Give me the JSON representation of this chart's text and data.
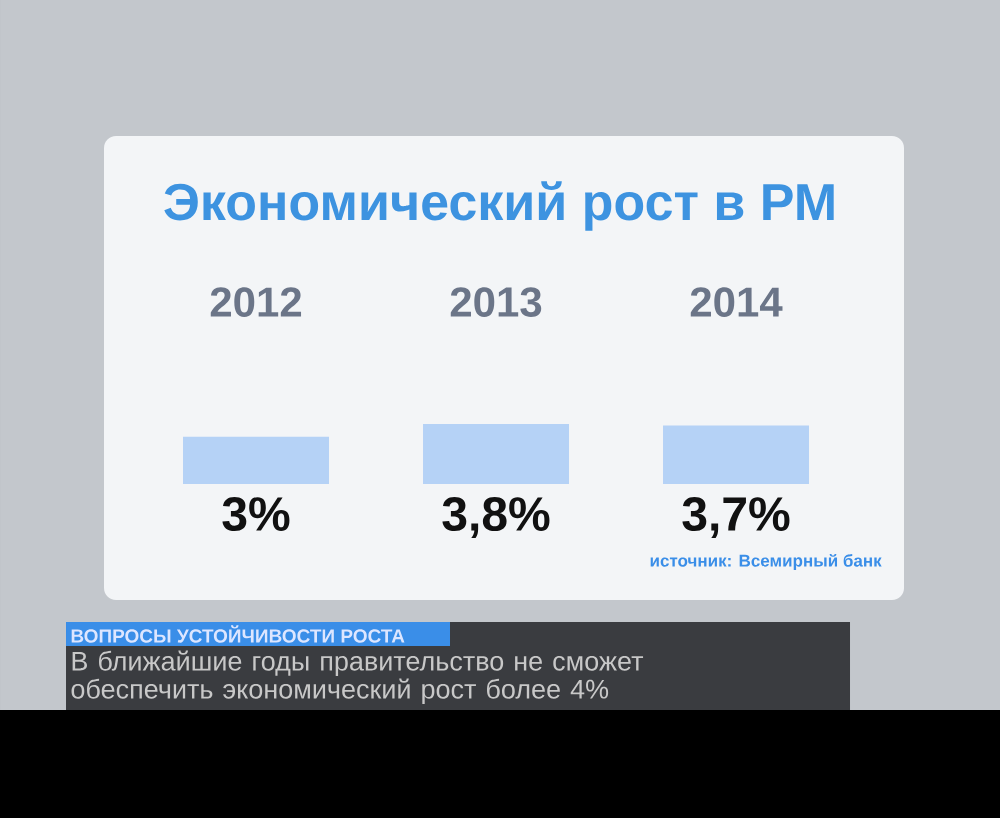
{
  "chart_data": {
    "type": "bar",
    "title": "Экономический рост в РМ",
    "categories": [
      "2012",
      "2013",
      "2014"
    ],
    "values": [
      3,
      3.8,
      3.7
    ],
    "value_labels": [
      "3%",
      "3,8%",
      "3,7%"
    ],
    "color": "#b5d2f6",
    "annotations": [
      "источник: Всемирный банк",
      "ВОПРОСЫ УСТОЙЧИВОСТИ РОСТА",
      "В ближайшие годы правительство не сможет обеспечить экономический рост более 4%"
    ]
  }
}
